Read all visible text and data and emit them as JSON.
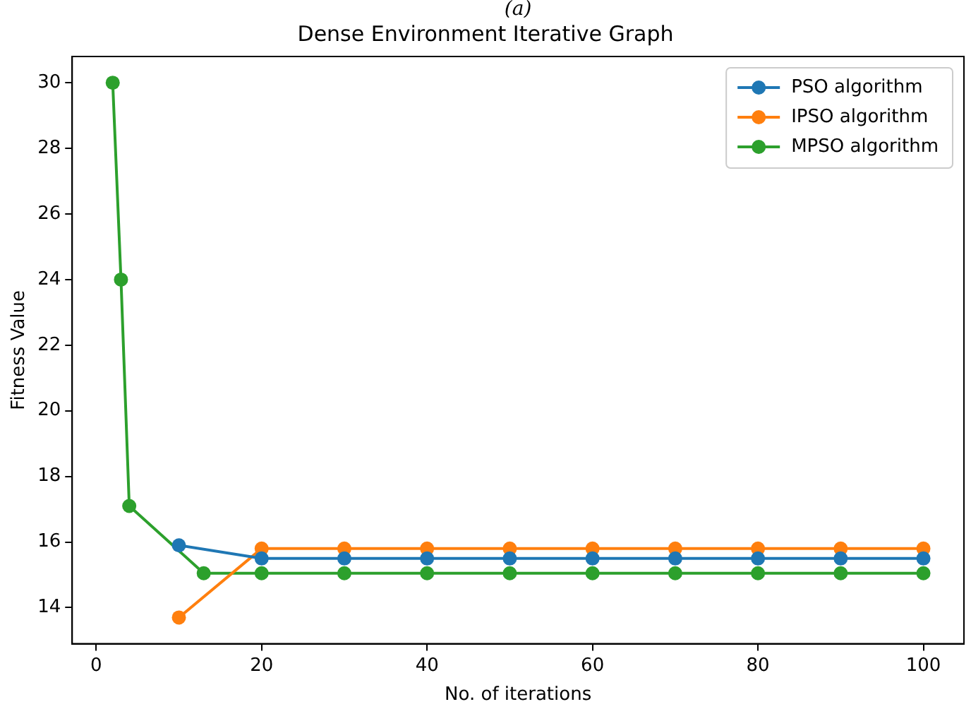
{
  "chart_data": {
    "type": "line",
    "title": "Dense Environment Iterative Graph",
    "xlabel": "No. of iterations",
    "ylabel": "Fitness Value",
    "annotations": [
      "(a)"
    ],
    "series": [
      {
        "name": "PSO algorithm",
        "color": "#1f77b4",
        "x": [
          10,
          20,
          30,
          40,
          50,
          60,
          70,
          80,
          90,
          100
        ],
        "values": [
          15.9,
          15.5,
          15.5,
          15.5,
          15.5,
          15.5,
          15.5,
          15.5,
          15.5,
          15.5
        ]
      },
      {
        "name": "IPSO algorithm",
        "color": "#ff7f0e",
        "x": [
          10,
          20,
          30,
          40,
          50,
          60,
          70,
          80,
          90,
          100
        ],
        "values": [
          13.7,
          15.8,
          15.8,
          15.8,
          15.8,
          15.8,
          15.8,
          15.8,
          15.8,
          15.8
        ]
      },
      {
        "name": "MPSO algorithm",
        "color": "#2ca02c",
        "x": [
          2,
          3,
          4,
          13,
          20,
          30,
          40,
          50,
          60,
          70,
          80,
          90,
          100
        ],
        "values": [
          30,
          24,
          17.1,
          15.05,
          15.05,
          15.05,
          15.05,
          15.05,
          15.05,
          15.05,
          15.05,
          15.05,
          15.05
        ]
      }
    ],
    "xlim": [
      -2.9,
      104.9
    ],
    "ylim": [
      12.9,
      30.8
    ],
    "xticks": [
      0,
      20,
      40,
      60,
      80,
      100
    ],
    "yticks": [
      14,
      16,
      18,
      20,
      22,
      24,
      26,
      28,
      30
    ],
    "grid": false,
    "legend": "top right",
    "marker": "circle",
    "line_style": "solid"
  }
}
